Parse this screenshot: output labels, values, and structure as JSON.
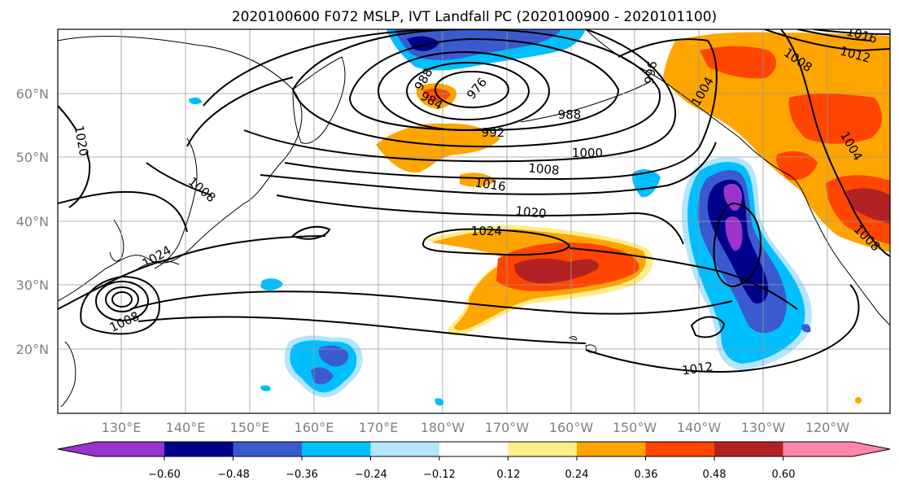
{
  "title": "2020100600 F072 MSLP, IVT Landfall PC (2020100900 - 2020101100)",
  "lat_labels": [
    "60°N",
    "50°N",
    "40°N",
    "30°N",
    "20°N"
  ],
  "lon_labels": [
    "130°E",
    "140°E",
    "150°E",
    "160°E",
    "170°E",
    "180°W",
    "170°W",
    "160°W",
    "150°W",
    "140°W",
    "130°W",
    "120°W"
  ],
  "colorbar": {
    "tick_labels": [
      "−0.60",
      "−0.48",
      "−0.36",
      "−0.24",
      "−0.12",
      "0.12",
      "0.24",
      "0.36",
      "0.48",
      "0.60"
    ],
    "colors": [
      "#9933cc",
      "#00008b",
      "#3a5bd0",
      "#00bfff",
      "#b3e5fc",
      "#ffffff",
      "#ffee88",
      "#ffa500",
      "#ff4500",
      "#b22222",
      "#ff88aa"
    ]
  },
  "contour_labels": [
    "1020",
    "1008",
    "988",
    "984",
    "976",
    "988",
    "992",
    "996",
    "1004",
    "1012",
    "1016",
    "1008",
    "1000",
    "1008",
    "1016",
    "1020",
    "1024",
    "1004",
    "1008",
    "1012",
    "1008",
    "1024"
  ],
  "colors": {
    "land_outline": "#000000",
    "grid": "#999999",
    "contour": "#000000"
  }
}
